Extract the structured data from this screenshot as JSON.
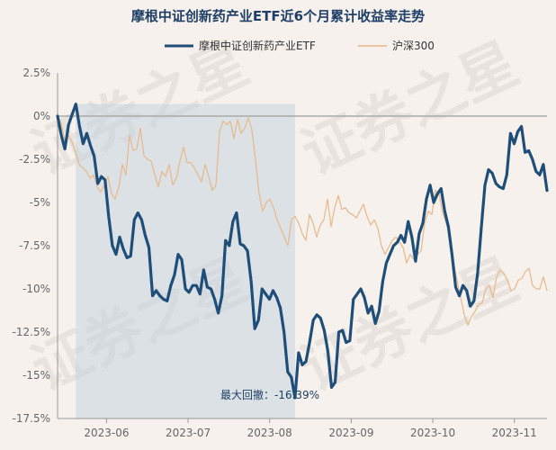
{
  "chart_data": {
    "type": "line",
    "title": "摩根中证创新药产业ETF近6个月累计收益率走势",
    "xlabel": "",
    "ylabel": "",
    "ylim": [
      -17.5,
      2.5
    ],
    "y_ticks": [
      2.5,
      0,
      -2.5,
      -5,
      -7.5,
      -10,
      -12.5,
      -15,
      -17.5
    ],
    "y_tick_labels": [
      "2.5%",
      "0%",
      "-2.5%",
      "-5%",
      "-7.5%",
      "-10%",
      "-12.5%",
      "-15%",
      "-17.5%"
    ],
    "x_ticks": [
      "2023-06",
      "2023-07",
      "2023-08",
      "2023-09",
      "2023-10",
      "2023-11"
    ],
    "x_tick_positions": [
      12,
      32,
      52,
      72,
      92,
      112
    ],
    "x_range": [
      0,
      120
    ],
    "legend_position": "top",
    "grid": false,
    "watermark_text": "证券之星",
    "max_drawdown": {
      "label": "最大回撤：-16.39%",
      "value": -16.39,
      "start_index": 5,
      "end_index": 65
    },
    "colors": {
      "etf": "#1f4e79",
      "index": "#e8b88a",
      "drawdown_fill": "#c5d3df",
      "zero_line": "#aaaaaa",
      "title": "#1f3f66",
      "background": "#f6f1ec"
    },
    "series": [
      {
        "name": "摩根中证创新药产业ETF",
        "values": [
          0,
          -1.1,
          -1.9,
          -0.5,
          0.1,
          0.7,
          -0.6,
          -1.6,
          -1.0,
          -1.7,
          -2.3,
          -3.9,
          -3.5,
          -3.7,
          -5.8,
          -7.5,
          -8.0,
          -7.0,
          -7.7,
          -8.2,
          -8.1,
          -6.0,
          -5.6,
          -6.0,
          -6.9,
          -7.6,
          -10.4,
          -10.1,
          -10.4,
          -10.6,
          -10.7,
          -9.8,
          -9.2,
          -8.0,
          -8.3,
          -10.0,
          -10.2,
          -9.8,
          -9.8,
          -10.3,
          -8.9,
          -9.9,
          -10.0,
          -10.6,
          -11.4,
          -10.4,
          -7.2,
          -7.5,
          -6.1,
          -5.6,
          -7.4,
          -7.5,
          -7.8,
          -9.6,
          -12.3,
          -11.8,
          -10.0,
          -10.3,
          -10.6,
          -10.1,
          -10.5,
          -11.1,
          -12.5,
          -14.8,
          -15.1,
          -16.3,
          -13.7,
          -14.4,
          -14.2,
          -13.1,
          -11.8,
          -11.5,
          -11.7,
          -12.4,
          -13.6,
          -15.7,
          -15.4,
          -12.5,
          -12.4,
          -13.1,
          -13.0,
          -10.6,
          -10.3,
          -10.0,
          -10.5,
          -11.4,
          -11.0,
          -12.0,
          -11.3,
          -9.6,
          -8.5,
          -8.0,
          -7.5,
          -7.3,
          -6.9,
          -7.3,
          -6.1,
          -7.0,
          -8.4,
          -6.8,
          -6.2,
          -4.8,
          -4.0,
          -5.0,
          -4.5,
          -4.2,
          -5.5,
          -6.4,
          -8.0,
          -9.9,
          -10.4,
          -9.8,
          -10.1,
          -11.0,
          -10.7,
          -9.1,
          -6.5,
          -4.0,
          -3.1,
          -3.3,
          -3.9,
          -4.1,
          -4.2,
          -3.4,
          -1.0,
          -1.6,
          -0.9,
          -0.6,
          -2.1,
          -2.0,
          -2.5,
          -3.2,
          -3.4,
          -2.8,
          -4.3
        ]
      },
      {
        "name": "沪深300",
        "values": [
          0,
          -0.4,
          -1.4,
          -1.1,
          -1.5,
          -2.1,
          -2.8,
          -3.0,
          -3.2,
          -3.6,
          -3.4,
          -4.1,
          -4.4,
          -4.0,
          -3.5,
          -4.5,
          -4.8,
          -4.1,
          -2.8,
          -3.4,
          -1.1,
          -2.0,
          -1.9,
          -0.7,
          -2.3,
          -2.5,
          -2.6,
          -3.4,
          -4.1,
          -3.2,
          -3.5,
          -2.8,
          -4.0,
          -3.6,
          -2.6,
          -1.8,
          -2.7,
          -2.7,
          -3.0,
          -3.4,
          -3.8,
          -2.8,
          -3.5,
          -4.3,
          -4.0,
          -0.9,
          -0.3,
          -0.5,
          -0.3,
          -1.3,
          -0.2,
          -1.0,
          -0.7,
          -0.1,
          -0.8,
          -2.5,
          -4.5,
          -5.5,
          -5.0,
          -4.8,
          -5.3,
          -6.0,
          -6.5,
          -7.0,
          -7.5,
          -6.0,
          -5.8,
          -6.2,
          -6.8,
          -7.2,
          -5.7,
          -6.2,
          -7.0,
          -6.3,
          -6.0,
          -4.8,
          -6.4,
          -5.3,
          -4.6,
          -5.4,
          -5.3,
          -5.6,
          -5.7,
          -5.9,
          -5.5,
          -5.1,
          -5.8,
          -6.3,
          -6.0,
          -6.5,
          -7.5,
          -8.0,
          -7.6,
          -7.2,
          -7.0,
          -7.3,
          -7.6,
          -8.5,
          -8.0,
          -8.3,
          -8.0,
          -7.8,
          -6.2,
          -5.5,
          -5.7,
          -4.3,
          -4.5,
          -5.6,
          -6.2,
          -7.0,
          -8.5,
          -9.5,
          -10.5,
          -11.5,
          -12.1,
          -11.6,
          -11.3,
          -10.9,
          -10.8,
          -10.0,
          -9.8,
          -10.5,
          -9.3,
          -8.9,
          -9.1,
          -9.5,
          -10.1,
          -10.0,
          -9.5,
          -9.4,
          -9.0,
          -8.8,
          -9.8,
          -10.0,
          -10.0,
          -9.3,
          -10.1
        ]
      }
    ]
  }
}
